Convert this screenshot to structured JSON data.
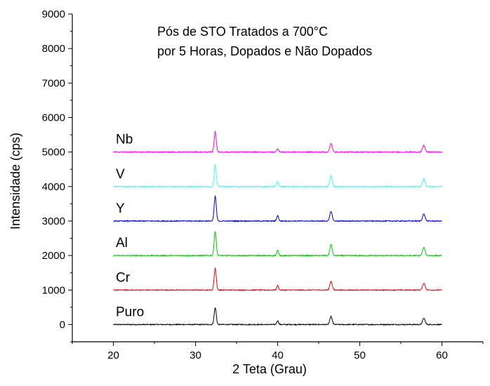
{
  "chart_data": {
    "type": "line",
    "title_lines": [
      "Pós de STO Tratados a 700°C",
      "por 5 Horas, Dopados e Não Dopados"
    ],
    "xlabel": "2 Teta (Grau)",
    "ylabel": "Intensidade (cps)",
    "xlim": [
      15,
      65
    ],
    "ylim": [
      -500,
      9000
    ],
    "x_ticks": [
      20,
      30,
      40,
      50,
      60
    ],
    "y_ticks": [
      0,
      1000,
      2000,
      3000,
      4000,
      5000,
      6000,
      7000,
      8000,
      9000
    ],
    "grid": false,
    "x_range": [
      20,
      60
    ],
    "peaks_x": [
      32.4,
      40.0,
      46.5,
      57.8
    ],
    "series": [
      {
        "name": "Puro",
        "baseline": 0,
        "peaks": [
          490,
          110,
          230,
          180
        ],
        "color": "#000000"
      },
      {
        "name": "Cr",
        "baseline": 1000,
        "peaks": [
          1640,
          1130,
          1260,
          1200
        ],
        "color": "#ff0000"
      },
      {
        "name": "Al",
        "baseline": 2000,
        "peaks": [
          2700,
          2150,
          2320,
          2230
        ],
        "color": "#00cc00"
      },
      {
        "name": "Y",
        "baseline": 3000,
        "peaks": [
          3720,
          3160,
          3280,
          3200
        ],
        "color": "#0000cc"
      },
      {
        "name": "V",
        "baseline": 4000,
        "peaks": [
          4630,
          4150,
          4310,
          4230
        ],
        "color": "#33ffff"
      },
      {
        "name": "Nb",
        "baseline": 5000,
        "peaks": [
          5590,
          5100,
          5250,
          5190
        ],
        "color": "#ff00ff"
      }
    ]
  }
}
